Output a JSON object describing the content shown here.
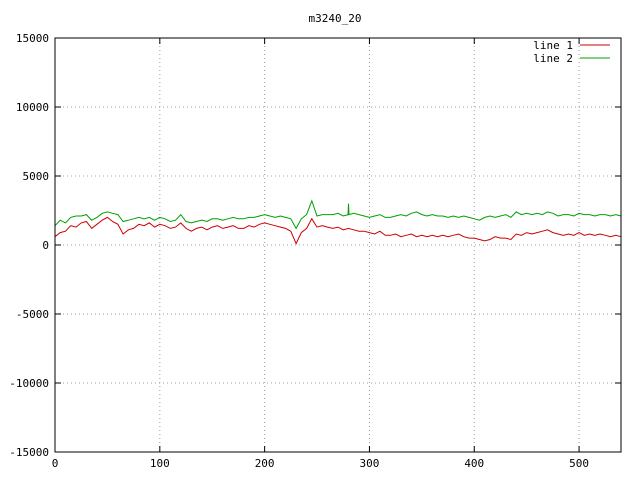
{
  "chart_data": {
    "type": "line",
    "title": "m3240_20",
    "xlabel": "",
    "ylabel": "",
    "xlim": [
      0,
      540
    ],
    "ylim": [
      -15000,
      15000
    ],
    "xticks": [
      0,
      100,
      200,
      300,
      400,
      500
    ],
    "yticks": [
      -15000,
      -10000,
      -5000,
      0,
      5000,
      10000,
      15000
    ],
    "xtick_labels": [
      "0",
      "100",
      "200",
      "300",
      "400",
      "500"
    ],
    "ytick_labels": [
      "-15000",
      "-10000",
      "-5000",
      "0",
      "5000",
      "10000",
      "15000"
    ],
    "grid": true,
    "legend_position": "top-right",
    "series": [
      {
        "name": "line 1",
        "color": "#cc0000",
        "x": [
          0,
          5,
          10,
          15,
          20,
          25,
          30,
          35,
          40,
          45,
          50,
          55,
          60,
          65,
          70,
          75,
          80,
          85,
          90,
          95,
          100,
          105,
          110,
          115,
          120,
          125,
          130,
          135,
          140,
          145,
          150,
          155,
          160,
          165,
          170,
          175,
          180,
          185,
          190,
          195,
          200,
          205,
          210,
          215,
          220,
          225,
          230,
          235,
          240,
          245,
          250,
          255,
          260,
          265,
          270,
          275,
          280,
          285,
          290,
          295,
          300,
          305,
          310,
          315,
          320,
          325,
          330,
          335,
          340,
          345,
          350,
          355,
          360,
          365,
          370,
          375,
          380,
          385,
          390,
          395,
          400,
          405,
          410,
          415,
          420,
          425,
          430,
          435,
          440,
          445,
          450,
          455,
          460,
          465,
          470,
          475,
          480,
          485,
          490,
          495,
          500,
          505,
          510,
          515,
          520,
          525,
          530,
          535,
          540
        ],
        "y": [
          600,
          900,
          1000,
          1400,
          1300,
          1600,
          1700,
          1200,
          1500,
          1800,
          2000,
          1700,
          1500,
          800,
          1100,
          1200,
          1500,
          1400,
          1600,
          1300,
          1500,
          1400,
          1200,
          1300,
          1600,
          1200,
          1000,
          1200,
          1300,
          1100,
          1300,
          1400,
          1200,
          1300,
          1400,
          1200,
          1200,
          1400,
          1300,
          1500,
          1600,
          1500,
          1400,
          1300,
          1200,
          1000,
          100,
          900,
          1200,
          1900,
          1300,
          1400,
          1300,
          1200,
          1300,
          1100,
          1200,
          1100,
          1000,
          1000,
          900,
          800,
          1000,
          700,
          700,
          800,
          600,
          700,
          800,
          600,
          700,
          600,
          700,
          600,
          700,
          600,
          700,
          800,
          600,
          500,
          500,
          400,
          300,
          400,
          600,
          500,
          500,
          400,
          800,
          700,
          900,
          800,
          900,
          1000,
          1100,
          900,
          800,
          700,
          800,
          700,
          900,
          700,
          800,
          700,
          800,
          700,
          600,
          700,
          600
        ]
      },
      {
        "name": "line 2",
        "color": "#00a000",
        "x": [
          0,
          5,
          10,
          15,
          20,
          25,
          30,
          35,
          40,
          45,
          50,
          55,
          60,
          65,
          70,
          75,
          80,
          85,
          90,
          95,
          100,
          105,
          110,
          115,
          120,
          125,
          130,
          135,
          140,
          145,
          150,
          155,
          160,
          165,
          170,
          175,
          180,
          185,
          190,
          195,
          200,
          205,
          210,
          215,
          220,
          225,
          230,
          235,
          240,
          245,
          250,
          255,
          260,
          265,
          270,
          275,
          280,
          285,
          290,
          295,
          300,
          305,
          310,
          315,
          320,
          325,
          330,
          335,
          340,
          345,
          350,
          355,
          360,
          365,
          370,
          375,
          380,
          385,
          390,
          395,
          400,
          405,
          410,
          415,
          420,
          425,
          430,
          435,
          440,
          445,
          450,
          455,
          460,
          465,
          470,
          475,
          480,
          485,
          490,
          495,
          500,
          505,
          510,
          515,
          520,
          525,
          530,
          535,
          540
        ],
        "y": [
          1400,
          1800,
          1600,
          2000,
          2100,
          2100,
          2200,
          1800,
          2000,
          2300,
          2400,
          2300,
          2200,
          1700,
          1800,
          1900,
          2000,
          1900,
          2000,
          1800,
          2000,
          1900,
          1700,
          1800,
          2200,
          1700,
          1600,
          1700,
          1800,
          1700,
          1900,
          1900,
          1800,
          1900,
          2000,
          1900,
          1900,
          2000,
          2000,
          2100,
          2200,
          2100,
          2000,
          2100,
          2000,
          1900,
          1200,
          1900,
          2200,
          3200,
          2100,
          2200,
          2200,
          2200,
          2300,
          2100,
          2200,
          2300,
          2200,
          2100,
          2000,
          2100,
          2200,
          2000,
          2000,
          2100,
          2200,
          2100,
          2300,
          2400,
          2200,
          2100,
          2200,
          2100,
          2100,
          2000,
          2100,
          2000,
          2100,
          2000,
          1900,
          1800,
          2000,
          2100,
          2000,
          2100,
          2200,
          2000,
          2400,
          2200,
          2300,
          2200,
          2300,
          2200,
          2400,
          2300,
          2100,
          2200,
          2200,
          2100,
          2300,
          2200,
          2200,
          2100,
          2200,
          2200,
          2100,
          2200,
          2100
        ],
        "spikes": [
          {
            "x": 280,
            "y": 3000
          }
        ]
      }
    ]
  }
}
